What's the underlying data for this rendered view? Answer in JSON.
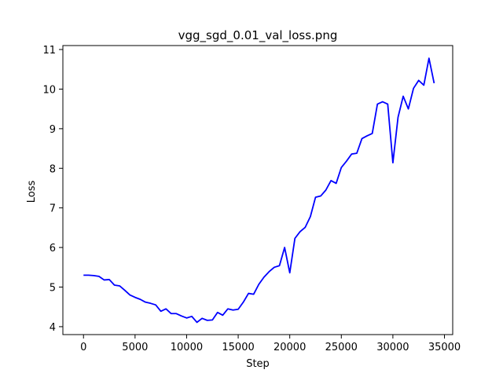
{
  "chart_data": {
    "type": "line",
    "title": "vgg_sgd_0.01_val_loss.png",
    "xlabel": "Step",
    "ylabel": "Loss",
    "xlim": [
      -2000,
      35800
    ],
    "ylim": [
      3.8,
      11.1
    ],
    "xticks": [
      0,
      5000,
      10000,
      15000,
      20000,
      25000,
      30000,
      35000
    ],
    "yticks": [
      4,
      5,
      6,
      7,
      8,
      9,
      10,
      11
    ],
    "grid": false,
    "legend": false,
    "line_color": "#0000ff",
    "series": [
      {
        "x": [
          0,
          500,
          1000,
          1500,
          2000,
          2500,
          3000,
          3500,
          4000,
          4500,
          5000,
          5500,
          6000,
          6500,
          7000,
          7500,
          8000,
          8500,
          9000,
          9500,
          10000,
          10500,
          11000,
          11500,
          12000,
          12500,
          13000,
          13500,
          14000,
          14500,
          15000,
          15500,
          16000,
          16500,
          17000,
          17500,
          18000,
          18500,
          19000,
          19500,
          20000,
          20500,
          21000,
          21500,
          22000,
          22500,
          23000,
          23500,
          24000,
          24500,
          25000,
          25500,
          26000,
          26500,
          27000,
          27500,
          28000,
          28500,
          29000,
          29500,
          30000,
          30500,
          31000,
          31500,
          32000,
          32500,
          33000,
          33500,
          34000
        ],
        "y": [
          5.3,
          5.3,
          5.29,
          5.27,
          5.18,
          5.19,
          5.05,
          5.03,
          4.92,
          4.8,
          4.74,
          4.69,
          4.62,
          4.59,
          4.55,
          4.39,
          4.45,
          4.33,
          4.33,
          4.27,
          4.22,
          4.26,
          4.11,
          4.21,
          4.16,
          4.17,
          4.36,
          4.29,
          4.45,
          4.42,
          4.44,
          4.62,
          4.84,
          4.82,
          5.07,
          5.25,
          5.39,
          5.5,
          5.54,
          6.0,
          5.36,
          6.23,
          6.4,
          6.51,
          6.78,
          7.27,
          7.3,
          7.45,
          7.69,
          7.62,
          8.02,
          8.18,
          8.36,
          8.38,
          8.75,
          8.82,
          8.88,
          9.62,
          9.68,
          9.62,
          8.14,
          9.29,
          9.82,
          9.5,
          10.02,
          10.22,
          10.1,
          10.78,
          10.15
        ]
      }
    ]
  }
}
